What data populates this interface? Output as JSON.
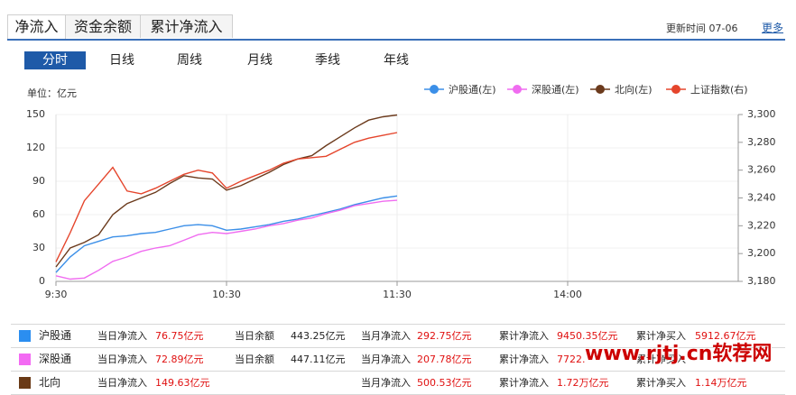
{
  "tabs": [
    "净流入",
    "资金余额",
    "累计净流入"
  ],
  "update_label": "更新时间",
  "update_time": "07-06",
  "more": "更多",
  "periods": [
    "分时",
    "日线",
    "周线",
    "月线",
    "季线",
    "年线"
  ],
  "watermark": "www.rjtj.cn软荐网",
  "chart_data": {
    "type": "line",
    "y_label": "单位：亿元",
    "x": [
      0,
      5,
      10,
      15,
      20,
      25,
      30,
      35,
      40,
      45,
      50,
      55,
      60,
      65,
      70,
      75,
      80,
      85,
      90,
      95,
      100,
      105,
      110,
      115,
      120
    ],
    "xlim": [
      0,
      240
    ],
    "xticks": [
      {
        "value": 0,
        "label": "9:30"
      },
      {
        "value": 60,
        "label": "10:30"
      },
      {
        "value": 120,
        "label": "11:30"
      },
      {
        "value": 180,
        "label": "14:00"
      }
    ],
    "ylim": [
      0,
      150
    ],
    "yticks": [
      0,
      30,
      60,
      90,
      120,
      150
    ],
    "y2lim": [
      3180,
      3300
    ],
    "y2ticks": [
      {
        "value": 3180,
        "label": "3,180"
      },
      {
        "value": 3200,
        "label": "3,200"
      },
      {
        "value": 3220,
        "label": "3,220"
      },
      {
        "value": 3240,
        "label": "3,240"
      },
      {
        "value": 3260,
        "label": "3,260"
      },
      {
        "value": 3280,
        "label": "3,280"
      },
      {
        "value": 3300,
        "label": "3,300"
      }
    ],
    "grid": true,
    "legend": "top-right",
    "series": [
      {
        "name": "沪股通(左)",
        "color": "#3b8fe8",
        "values": [
          8,
          22,
          32,
          36,
          40,
          41,
          43,
          44,
          47,
          50,
          51,
          50,
          46,
          47,
          49,
          51,
          54,
          56,
          59,
          62,
          65,
          69,
          72,
          75,
          76.75
        ]
      },
      {
        "name": "深股通(左)",
        "color": "#f06cf0",
        "values": [
          5,
          2,
          3,
          10,
          18,
          22,
          27,
          30,
          32,
          37,
          42,
          44,
          43,
          45,
          47,
          50,
          52,
          55,
          57,
          61,
          64,
          68,
          70,
          72,
          72.89
        ]
      },
      {
        "name": "北向(左)",
        "color": "#6b3a1c",
        "values": [
          13,
          30,
          35,
          42,
          60,
          70,
          75,
          80,
          88,
          95,
          93,
          92,
          82,
          86,
          92,
          98,
          105,
          110,
          113,
          122,
          130,
          138,
          145,
          148,
          149.63
        ]
      },
      {
        "name": "上证指数(右)",
        "color": "#e5452c",
        "axis": "y2",
        "values": [
          3194,
          3215,
          3238,
          3250,
          3262,
          3245,
          3243,
          3247,
          3252,
          3257,
          3260,
          3258,
          3247,
          3252,
          3256,
          3260,
          3265,
          3268,
          3269,
          3270,
          3275,
          3280,
          3283,
          3285,
          3287
        ]
      }
    ]
  },
  "table": {
    "rows": [
      {
        "name": "沪股通",
        "color": "#2b8ef0",
        "cells": [
          [
            "当日净流入",
            "76.75亿元"
          ],
          [
            "当日余额",
            "443.25亿元"
          ],
          [
            "当月净流入",
            "292.75亿元"
          ],
          [
            "累计净流入",
            "9450.35亿元"
          ],
          [
            "累计净买入",
            "5912.67亿元"
          ]
        ]
      },
      {
        "name": "深股通",
        "color": "#f36af3",
        "cells": [
          [
            "当日净流入",
            "72.89亿元"
          ],
          [
            "当日余额",
            "447.11亿元"
          ],
          [
            "当月净流入",
            "207.78亿元"
          ],
          [
            "累计净流入",
            "7722."
          ],
          [
            "累计净买入",
            ""
          ]
        ]
      },
      {
        "name": "北向",
        "color": "#6a3a16",
        "cells": [
          [
            "当日净流入",
            "149.63亿元"
          ],
          null,
          [
            "当月净流入",
            "500.53亿元"
          ],
          [
            "累计净流入",
            "1.72万亿元"
          ],
          [
            "累计净买入",
            "1.14万亿元"
          ]
        ]
      }
    ]
  }
}
